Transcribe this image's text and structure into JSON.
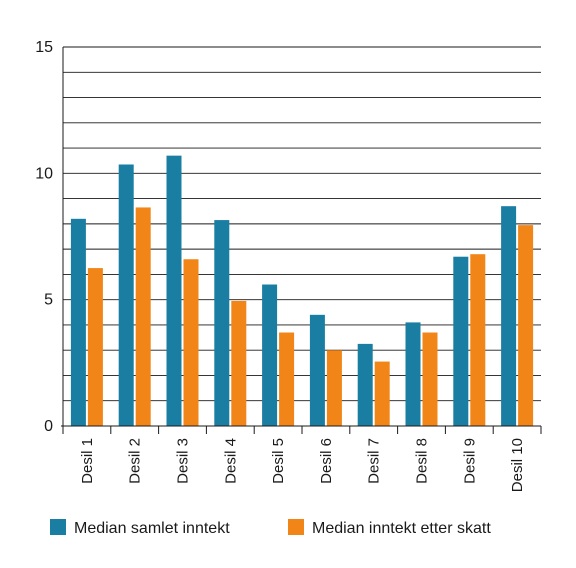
{
  "chart_data": {
    "type": "bar",
    "title": "",
    "xlabel": "",
    "ylabel": "",
    "ylim": [
      0,
      15
    ],
    "yticks": [
      0,
      5,
      10,
      15
    ],
    "grid": true,
    "legend_position": "bottom",
    "categories": [
      "Desil 1",
      "Desil 2",
      "Desil 3",
      "Desil 4",
      "Desil 5",
      "Desil 6",
      "Desil 7",
      "Desil 8",
      "Desil 9",
      "Desil 10"
    ],
    "series": [
      {
        "name": "Median samlet inntekt",
        "color": "#1a7ea3",
        "values": [
          8.2,
          10.35,
          10.7,
          8.15,
          5.6,
          4.4,
          3.25,
          4.1,
          6.7,
          8.7
        ]
      },
      {
        "name": "Median inntekt etter skatt",
        "color": "#f28517",
        "values": [
          6.25,
          8.65,
          6.6,
          4.95,
          3.7,
          3.0,
          2.55,
          3.7,
          6.8,
          7.95
        ]
      }
    ]
  }
}
